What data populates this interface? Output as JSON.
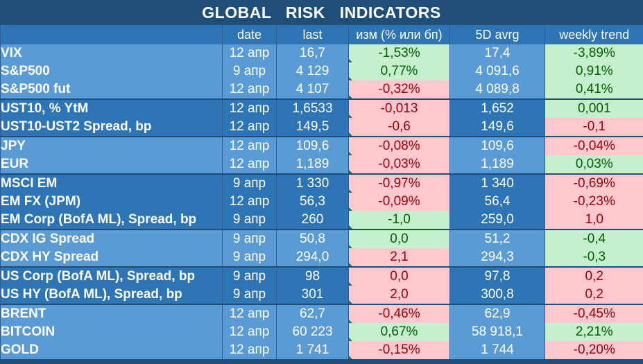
{
  "title": "GLOBAL   RISK   INDICATORS",
  "headers": [
    "",
    "date",
    "last",
    "изм (% или бп)",
    "5D avrg",
    "weekly trend"
  ],
  "rows": [
    {
      "name": "VIX",
      "date": "12 апр",
      "last": "16,7",
      "chg": "-1,53%",
      "chg_sign": "pos",
      "avg": "17,4",
      "trend": "-3,89%",
      "trend_sign": "pos",
      "group": 1
    },
    {
      "name": "S&P500",
      "date": "9 апр",
      "last": "4 129",
      "chg": "0,77%",
      "chg_sign": "pos",
      "avg": "4 091,6",
      "trend": "0,91%",
      "trend_sign": "pos",
      "group": 1
    },
    {
      "name": "S&P500 fut",
      "date": "12 апр",
      "last": "4 107",
      "chg": "-0,32%",
      "chg_sign": "neg",
      "avg": "4 089,8",
      "trend": "0,41%",
      "trend_sign": "pos",
      "group": 1
    },
    {
      "name": "UST10, % YtM",
      "date": "12 апр",
      "last": "1,6533",
      "chg": "-0,013",
      "chg_sign": "neg",
      "avg": "1,652",
      "trend": "0,001",
      "trend_sign": "pos",
      "group": 2
    },
    {
      "name": "UST10-UST2 Spread, bp",
      "date": "12 апр",
      "last": "149,5",
      "chg": "-0,6",
      "chg_sign": "neg",
      "avg": "149,6",
      "trend": "-0,1",
      "trend_sign": "neg",
      "group": 2
    },
    {
      "name": "JPY",
      "date": "12 апр",
      "last": "109,6",
      "chg": "-0,08%",
      "chg_sign": "neg",
      "avg": "109,6",
      "trend": "-0,04%",
      "trend_sign": "neg",
      "group": 1
    },
    {
      "name": "EUR",
      "date": "12 апр",
      "last": "1,189",
      "chg": "-0,03%",
      "chg_sign": "neg",
      "avg": "1,189",
      "trend": "0,03%",
      "trend_sign": "pos",
      "group": 1
    },
    {
      "name": "MSCI EM",
      "date": "9 апр",
      "last": "1 330",
      "chg": "-0,97%",
      "chg_sign": "neg",
      "avg": "1 340",
      "trend": "-0,69%",
      "trend_sign": "neg",
      "group": 2
    },
    {
      "name": "EM FX (JPM)",
      "date": "12 апр",
      "last": "56,3",
      "chg": "-0,09%",
      "chg_sign": "neg",
      "avg": "56,4",
      "trend": "-0,23%",
      "trend_sign": "neg",
      "group": 2
    },
    {
      "name": "EM Corp (BofA ML), Spread, bp",
      "date": "9 апр",
      "last": "260",
      "chg": "-1,0",
      "chg_sign": "pos",
      "avg": "259,0",
      "trend": "1,0",
      "trend_sign": "neg",
      "group": 2
    },
    {
      "name": "CDX IG Spread",
      "date": "9 апр",
      "last": "50,8",
      "chg": "0,0",
      "chg_sign": "pos",
      "avg": "51,2",
      "trend": "-0,4",
      "trend_sign": "pos",
      "group": 1
    },
    {
      "name": "CDX HY Spread",
      "date": "9 апр",
      "last": "294,0",
      "chg": "2,1",
      "chg_sign": "neg",
      "avg": "294,3",
      "trend": "-0,3",
      "trend_sign": "pos",
      "group": 1
    },
    {
      "name": "US Corp (BofA ML), Spread, bp",
      "date": "9 апр",
      "last": "98",
      "chg": "0,0",
      "chg_sign": "neg",
      "avg": "97,8",
      "trend": "0,2",
      "trend_sign": "neg",
      "group": 2
    },
    {
      "name": "US HY (BofA ML), Spread, bp",
      "date": "9 апр",
      "last": "301",
      "chg": "2,0",
      "chg_sign": "neg",
      "avg": "300,8",
      "trend": "0,2",
      "trend_sign": "neg",
      "group": 2
    },
    {
      "name": "BRENT",
      "date": "12 апр",
      "last": "62,7",
      "chg": "-0,46%",
      "chg_sign": "neg",
      "avg": "62,9",
      "trend": "-0,45%",
      "trend_sign": "neg",
      "group": 1
    },
    {
      "name": "BITCOIN",
      "date": "12 апр",
      "last": "60 223",
      "chg": "0,67%",
      "chg_sign": "pos",
      "avg": "58 918,1",
      "trend": "2,21%",
      "trend_sign": "pos",
      "group": 1
    },
    {
      "name": "GOLD",
      "date": "12 апр",
      "last": "1 741",
      "chg": "-0,15%",
      "chg_sign": "neg",
      "avg": "1 744",
      "trend": "-0,20%",
      "trend_sign": "neg",
      "group": 1
    }
  ],
  "colors": {
    "header_bg": "#1f4e79",
    "light_band": "#5b9bd5",
    "dark_band": "#2e75b6",
    "positive_fill": "#c6efce",
    "positive_text": "#006100",
    "negative_fill": "#ffc7ce",
    "negative_text": "#9c0006"
  }
}
